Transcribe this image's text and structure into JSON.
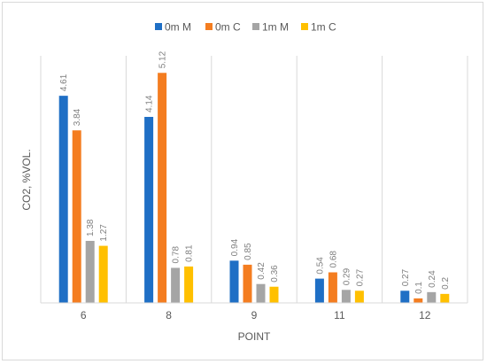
{
  "chart_data": {
    "type": "bar",
    "title": "",
    "xlabel": "POINT",
    "ylabel": "CO2, %VOL.",
    "categories": [
      "6",
      "8",
      "9",
      "11",
      "12"
    ],
    "series": [
      {
        "name": "0m M",
        "color": "#1f6fc5",
        "values": [
          4.61,
          4.14,
          0.94,
          0.54,
          0.27
        ],
        "labels": [
          "4.61",
          "4.14",
          "0.94",
          "0.54",
          "0.27"
        ]
      },
      {
        "name": "0m C",
        "color": "#f47d20",
        "values": [
          3.84,
          5.12,
          0.85,
          0.68,
          0.1
        ],
        "labels": [
          "3.84",
          "5.12",
          "0.85",
          "0.68",
          "0.1"
        ]
      },
      {
        "name": "1m M",
        "color": "#a5a5a5",
        "values": [
          1.38,
          0.78,
          0.42,
          0.29,
          0.24
        ],
        "labels": [
          "1.38",
          "0.78",
          "0.42",
          "0.29",
          "0.24"
        ]
      },
      {
        "name": "1m C",
        "color": "#ffc000",
        "values": [
          1.27,
          0.81,
          0.36,
          0.27,
          0.2
        ],
        "labels": [
          "1.27",
          "0.81",
          "0.36",
          "0.27",
          "0.2"
        ]
      }
    ],
    "ylim": [
      0,
      5.5
    ],
    "legend_position": "top",
    "grid": "vertical-category-separators",
    "data_labels": "rotated-above-bars"
  }
}
